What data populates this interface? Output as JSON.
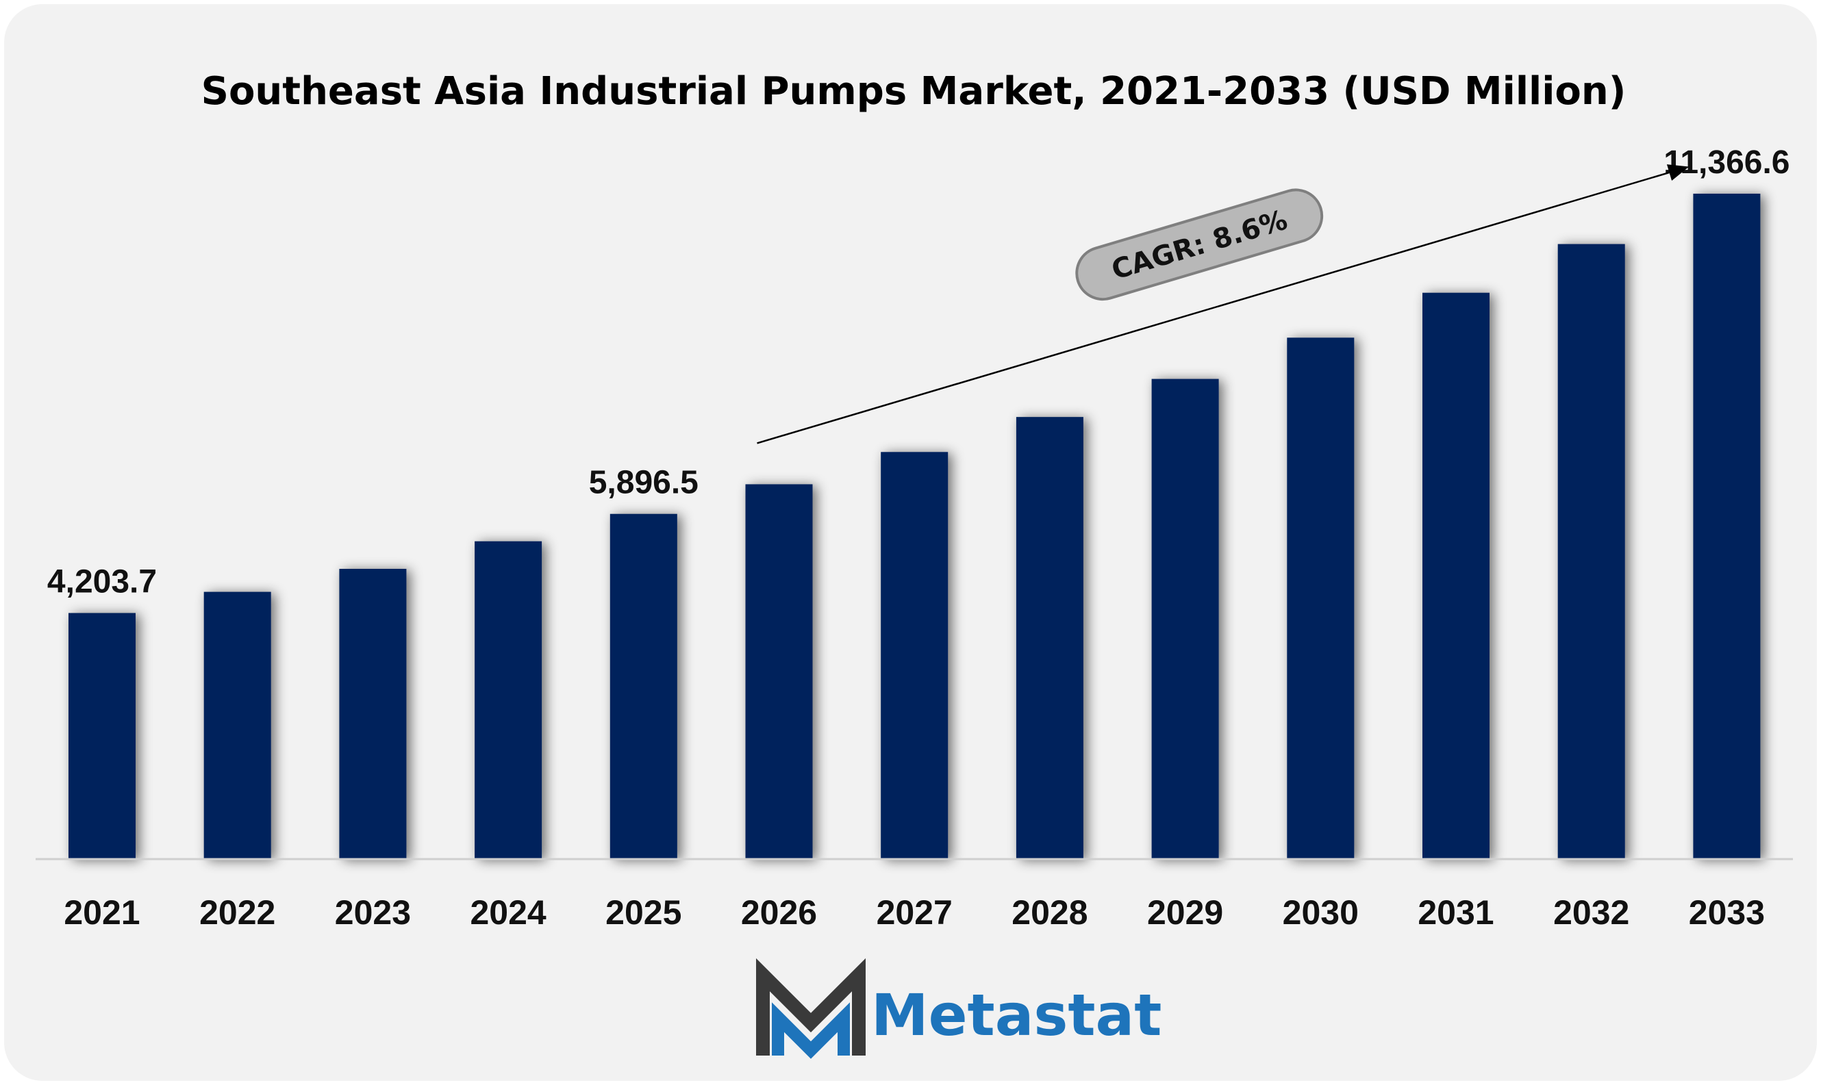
{
  "chart_data": {
    "type": "bar",
    "title": "Southeast Asia Industrial Pumps Market, 2021-2033 (USD Million)",
    "categories": [
      "2021",
      "2022",
      "2023",
      "2024",
      "2025",
      "2026",
      "2027",
      "2028",
      "2029",
      "2030",
      "2031",
      "2032",
      "2033"
    ],
    "values": [
      4203.7,
      4565,
      4958,
      5429,
      5896.5,
      6403,
      6954,
      7552,
      8202,
      8907,
      9674,
      10506,
      11366.6
    ],
    "data_labels": [
      {
        "index": 0,
        "text": "4,203.7"
      },
      {
        "index": 4,
        "text": "5,896.5"
      },
      {
        "index": 12,
        "text": "11,366.6"
      }
    ],
    "ylim": [
      0,
      12500
    ],
    "grid": false,
    "legend": "none",
    "bar_color": "#03205c",
    "annotation": {
      "label": "CAGR: 8.6%",
      "from_index": 5,
      "to_index": 12
    }
  },
  "logo": {
    "text": "Metastat",
    "color": "#1e74bb",
    "mark_dark": "#3a3a3a",
    "mark_blue": "#1e74bb"
  }
}
